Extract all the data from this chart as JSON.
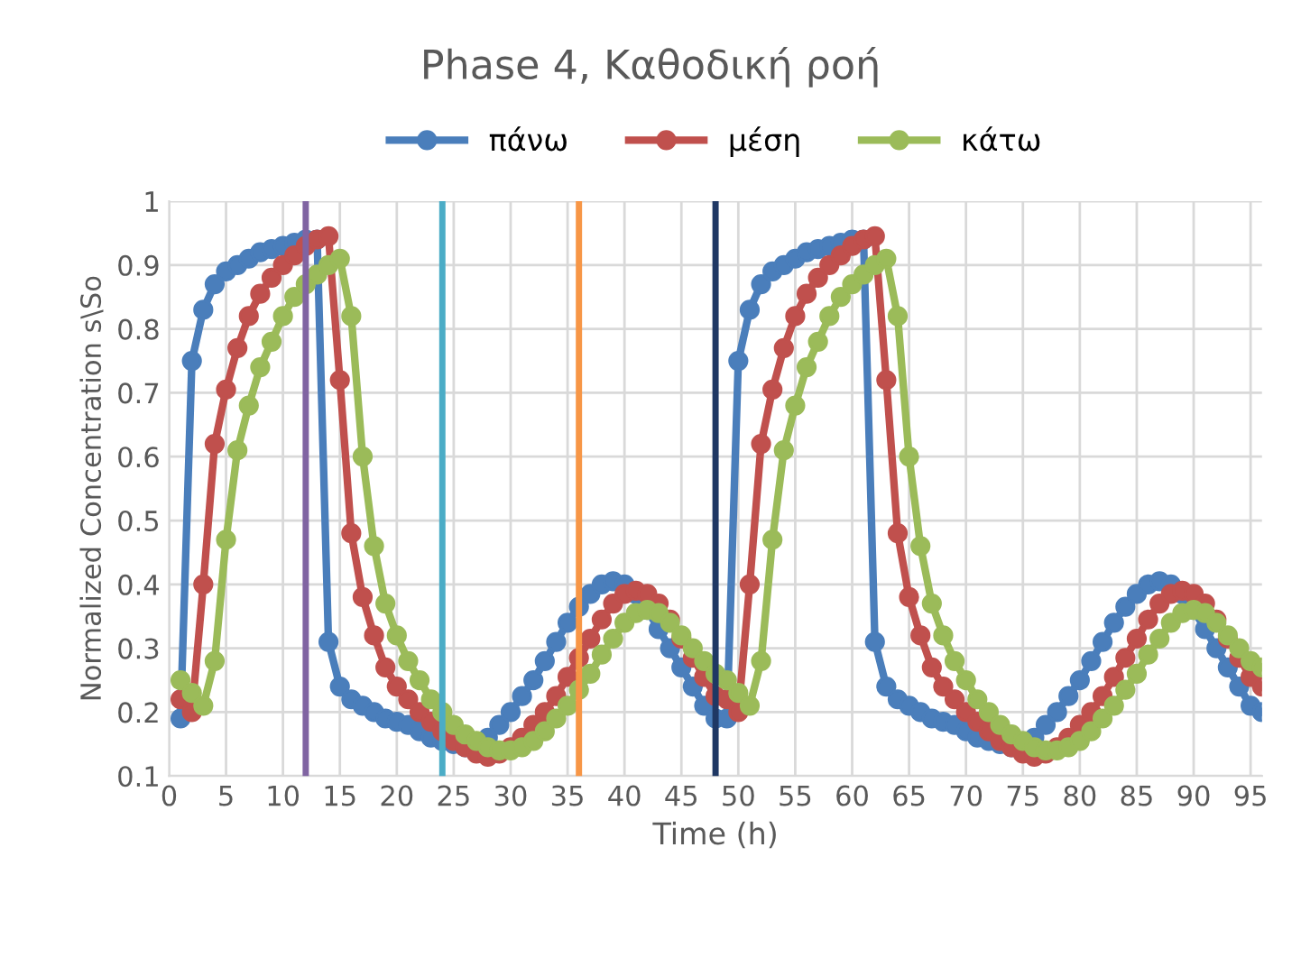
{
  "chart_data": {
    "type": "line",
    "title": "Phase 4, Καθοδική ροή",
    "xlabel": "Time (h)",
    "ylabel": "Normalized Concentration s\\So",
    "x": [
      1,
      2,
      3,
      4,
      5,
      6,
      7,
      8,
      9,
      10,
      11,
      12,
      13,
      14,
      15,
      16,
      17,
      18,
      19,
      20,
      21,
      22,
      23,
      24,
      25,
      26,
      27,
      28,
      29,
      30,
      31,
      32,
      33,
      34,
      35,
      36,
      37,
      38,
      39,
      40,
      41,
      42,
      43,
      44,
      45,
      46,
      47,
      48,
      49,
      50,
      51,
      52,
      53,
      54,
      55,
      56,
      57,
      58,
      59,
      60,
      61,
      62,
      63,
      64,
      65,
      66,
      67,
      68,
      69,
      70,
      71,
      72,
      73,
      74,
      75,
      76,
      77,
      78,
      79,
      80,
      81,
      82,
      83,
      84,
      85,
      86,
      87,
      88,
      89,
      90,
      91,
      92,
      93,
      94,
      95,
      96
    ],
    "series": [
      {
        "name": "πάνω",
        "color": "#4a7ebb",
        "values": [
          0.19,
          0.75,
          0.83,
          0.87,
          0.89,
          0.9,
          0.91,
          0.92,
          0.925,
          0.93,
          0.935,
          0.94,
          0.94,
          0.31,
          0.24,
          0.22,
          0.21,
          0.2,
          0.19,
          0.185,
          0.18,
          0.17,
          0.16,
          0.155,
          0.15,
          0.145,
          0.15,
          0.16,
          0.18,
          0.2,
          0.225,
          0.25,
          0.28,
          0.31,
          0.34,
          0.365,
          0.385,
          0.4,
          0.405,
          0.4,
          0.385,
          0.36,
          0.33,
          0.3,
          0.27,
          0.24,
          0.21,
          0.19,
          0.19,
          0.75,
          0.83,
          0.87,
          0.89,
          0.9,
          0.91,
          0.92,
          0.925,
          0.93,
          0.935,
          0.94,
          0.94,
          0.31,
          0.24,
          0.22,
          0.21,
          0.2,
          0.19,
          0.185,
          0.18,
          0.17,
          0.16,
          0.155,
          0.15,
          0.145,
          0.15,
          0.16,
          0.18,
          0.2,
          0.225,
          0.25,
          0.28,
          0.31,
          0.34,
          0.365,
          0.385,
          0.4,
          0.405,
          0.4,
          0.385,
          0.36,
          0.33,
          0.3,
          0.27,
          0.24,
          0.21,
          0.2
        ]
      },
      {
        "name": "μέση",
        "color": "#c0504d",
        "values": [
          0.22,
          0.2,
          0.4,
          0.62,
          0.705,
          0.77,
          0.82,
          0.855,
          0.88,
          0.9,
          0.915,
          0.93,
          0.94,
          0.945,
          0.72,
          0.48,
          0.38,
          0.32,
          0.27,
          0.24,
          0.22,
          0.2,
          0.185,
          0.17,
          0.155,
          0.145,
          0.135,
          0.13,
          0.135,
          0.145,
          0.16,
          0.18,
          0.2,
          0.225,
          0.255,
          0.285,
          0.315,
          0.345,
          0.37,
          0.385,
          0.39,
          0.385,
          0.37,
          0.345,
          0.315,
          0.285,
          0.255,
          0.225,
          0.22,
          0.2,
          0.4,
          0.62,
          0.705,
          0.77,
          0.82,
          0.855,
          0.88,
          0.9,
          0.915,
          0.93,
          0.94,
          0.945,
          0.72,
          0.48,
          0.38,
          0.32,
          0.27,
          0.24,
          0.22,
          0.2,
          0.185,
          0.17,
          0.155,
          0.145,
          0.135,
          0.13,
          0.135,
          0.145,
          0.16,
          0.18,
          0.2,
          0.225,
          0.255,
          0.285,
          0.315,
          0.345,
          0.37,
          0.385,
          0.39,
          0.385,
          0.37,
          0.345,
          0.315,
          0.285,
          0.255,
          0.24
        ]
      },
      {
        "name": "κάτω",
        "color": "#9bbb59",
        "values": [
          0.25,
          0.23,
          0.21,
          0.28,
          0.47,
          0.61,
          0.68,
          0.74,
          0.78,
          0.82,
          0.85,
          0.87,
          0.885,
          0.9,
          0.91,
          0.82,
          0.6,
          0.46,
          0.37,
          0.32,
          0.28,
          0.25,
          0.22,
          0.2,
          0.18,
          0.165,
          0.155,
          0.145,
          0.14,
          0.14,
          0.145,
          0.155,
          0.17,
          0.19,
          0.21,
          0.235,
          0.26,
          0.29,
          0.315,
          0.34,
          0.355,
          0.36,
          0.355,
          0.34,
          0.32,
          0.3,
          0.28,
          0.26,
          0.25,
          0.23,
          0.21,
          0.28,
          0.47,
          0.61,
          0.68,
          0.74,
          0.78,
          0.82,
          0.85,
          0.87,
          0.885,
          0.9,
          0.91,
          0.82,
          0.6,
          0.46,
          0.37,
          0.32,
          0.28,
          0.25,
          0.22,
          0.2,
          0.18,
          0.165,
          0.155,
          0.145,
          0.14,
          0.14,
          0.145,
          0.155,
          0.17,
          0.19,
          0.21,
          0.235,
          0.26,
          0.29,
          0.315,
          0.34,
          0.355,
          0.36,
          0.355,
          0.34,
          0.32,
          0.3,
          0.28,
          0.27
        ]
      }
    ],
    "ref_lines": [
      {
        "axis": "x",
        "value": 12,
        "color": "#8064a2"
      },
      {
        "axis": "x",
        "value": 24,
        "color": "#4bacc6"
      },
      {
        "axis": "x",
        "value": 36,
        "color": "#f79646"
      },
      {
        "axis": "x",
        "value": 48,
        "color": "#1f3864"
      }
    ],
    "xlim": [
      0,
      96
    ],
    "xticks": [
      0,
      5,
      10,
      15,
      20,
      25,
      30,
      35,
      40,
      45,
      50,
      55,
      60,
      65,
      70,
      75,
      80,
      85,
      90,
      95
    ],
    "ylim": [
      0.1,
      1
    ],
    "yticks": [
      0.1,
      0.2,
      0.3,
      0.4,
      0.5,
      0.6,
      0.7,
      0.8,
      0.9,
      1
    ],
    "grid": true,
    "legend": "top",
    "marker": "circle",
    "line_style": "solid"
  }
}
